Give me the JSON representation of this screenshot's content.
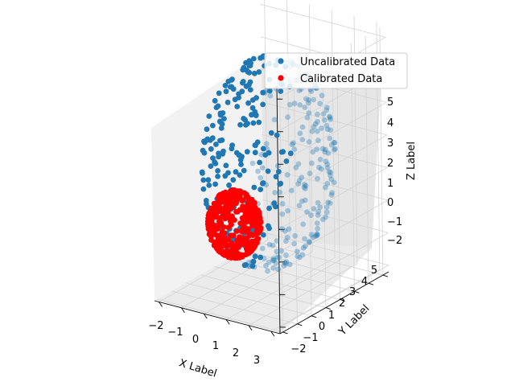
{
  "chart_data": {
    "type": "scatter",
    "projection": "3d",
    "title": "",
    "xlabel": "X Label",
    "ylabel": "Y Label",
    "zlabel": "Z Label",
    "xlim": [
      -2.2,
      3.4
    ],
    "ylim": [
      -2.2,
      5.4
    ],
    "zlim": [
      -2.2,
      5.4
    ],
    "x_ticks": [
      "−2",
      "−1",
      "0",
      "1",
      "2",
      "3"
    ],
    "y_ticks": [
      "−2",
      "−1",
      "0",
      "1",
      "2",
      "3",
      "4",
      "5"
    ],
    "z_ticks": [
      "−2",
      "−1",
      "0",
      "1",
      "2",
      "3",
      "4",
      "5"
    ],
    "grid": true,
    "legend_position": "upper-right",
    "series": [
      {
        "name": "Uncalibrated Data",
        "color": "#1f77b4",
        "shape": "ellipsoid-shell",
        "center": [
          0.6,
          1.5,
          1.6
        ],
        "radii": [
          2.3,
          3.0,
          3.2
        ],
        "point_count": 420
      },
      {
        "name": "Calibrated Data",
        "color": "#ff0000",
        "shape": "unit-sphere",
        "center": [
          0,
          0,
          0
        ],
        "radii": [
          1,
          1,
          1
        ],
        "point_count": 420
      }
    ]
  }
}
